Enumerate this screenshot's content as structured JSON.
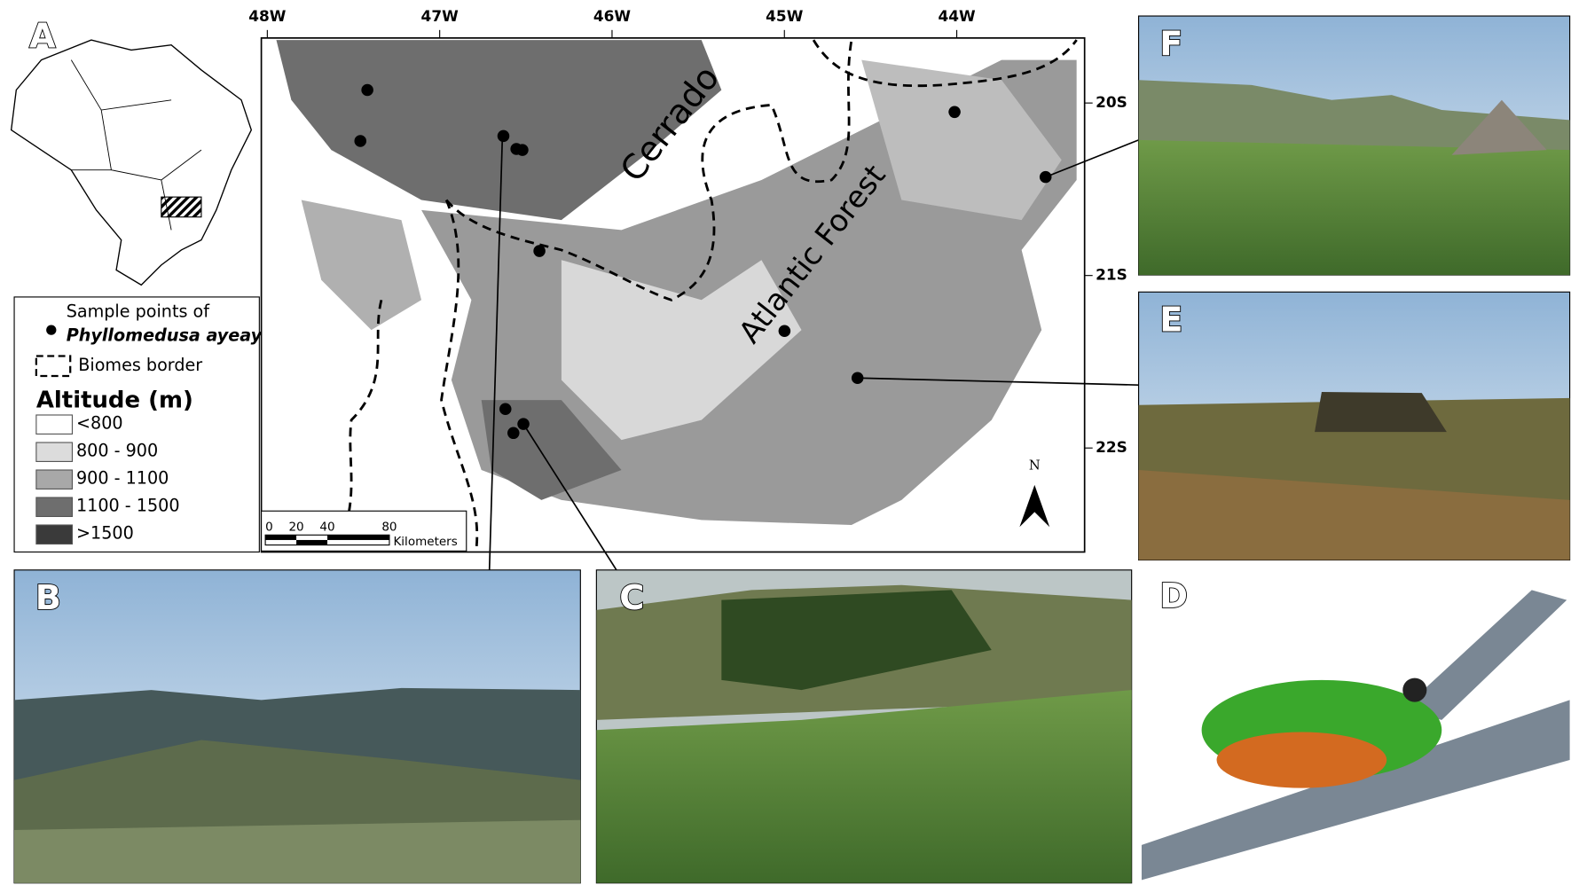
{
  "panels": {
    "a": "A",
    "b": "B",
    "c": "C",
    "d": "D",
    "e": "E",
    "f": "F"
  },
  "map": {
    "lon_labels": [
      "48W",
      "47W",
      "46W",
      "45W",
      "44W"
    ],
    "lat_labels": [
      "20S",
      "21S",
      "22S"
    ],
    "biome_labels": [
      "Cerrado",
      "Atlantic Forest"
    ],
    "north": "N",
    "scale": {
      "ticks": [
        "0",
        "20",
        "40",
        "80"
      ],
      "unit": "Kilometers"
    }
  },
  "legend": {
    "sample_points": "Sample points of",
    "species": "Phyllomedusa ayeaye",
    "biomes": "Biomes border",
    "altitude_title": "Altitude (m)",
    "classes": [
      "<800",
      "800 - 900",
      "900 - 1100",
      "1100 - 1500",
      ">1500"
    ]
  }
}
